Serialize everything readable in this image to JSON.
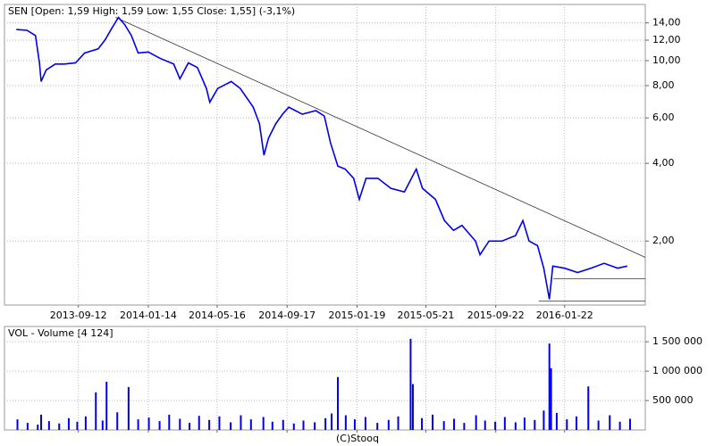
{
  "chart_data": [
    {
      "type": "line",
      "title": "SEN [Open: 1,59  High: 1,59  Low: 1,55  Close: 1,55] (-3,1%)",
      "color": "#0000ee",
      "yscale": "log",
      "grid": true,
      "xlim": [
        "2013-05-04",
        "2016-06-13"
      ],
      "xticks": [
        "2013-09-12",
        "2014-01-14",
        "2014-05-16",
        "2014-09-17",
        "2015-01-19",
        "2015-05-21",
        "2015-09-22",
        "2016-01-22"
      ],
      "ylim": [
        1.13,
        16.5
      ],
      "yticks": [
        {
          "value": 2,
          "label": "2,00"
        },
        {
          "value": 4,
          "label": "4,00"
        },
        {
          "value": 6,
          "label": "6,00"
        },
        {
          "value": 8,
          "label": "8,00"
        },
        {
          "value": 10,
          "label": "10,00"
        },
        {
          "value": 12,
          "label": "12,00"
        },
        {
          "value": 14,
          "label": "14,00"
        }
      ],
      "x": [
        "2013-05-25",
        "2013-06-13",
        "2013-06-28",
        "2013-07-05",
        "2013-07-08",
        "2013-07-17",
        "2013-08-02",
        "2013-08-18",
        "2013-09-07",
        "2013-09-23",
        "2013-10-17",
        "2013-10-29",
        "2013-11-09",
        "2013-11-22",
        "2013-12-03",
        "2013-12-15",
        "2013-12-27",
        "2014-01-14",
        "2014-02-04",
        "2014-02-28",
        "2014-03-11",
        "2014-03-26",
        "2014-04-11",
        "2014-04-27",
        "2014-05-03",
        "2014-05-17",
        "2014-06-10",
        "2014-06-26",
        "2014-07-19",
        "2014-07-30",
        "2014-08-07",
        "2014-08-15",
        "2014-08-28",
        "2014-09-09",
        "2014-09-20",
        "2014-10-14",
        "2014-11-07",
        "2014-11-22",
        "2014-12-03",
        "2014-12-16",
        "2014-12-29",
        "2015-01-13",
        "2015-01-23",
        "2015-02-04",
        "2015-02-25",
        "2015-03-20",
        "2015-04-13",
        "2015-05-04",
        "2015-05-15",
        "2015-06-07",
        "2015-06-23",
        "2015-07-09",
        "2015-07-24",
        "2015-08-17",
        "2015-08-25",
        "2015-09-10",
        "2015-10-03",
        "2015-10-27",
        "2015-11-09",
        "2015-11-20",
        "2015-12-05",
        "2015-12-16",
        "2015-12-26",
        "2016-01-01",
        "2016-01-22",
        "2016-02-14",
        "2016-03-09",
        "2016-04-01",
        "2016-04-25",
        "2016-05-12"
      ],
      "values": [
        13.2,
        13.1,
        12.5,
        9.8,
        8.3,
        9.2,
        9.7,
        9.7,
        9.8,
        10.7,
        11.1,
        12.0,
        13.2,
        14.7,
        13.8,
        12.5,
        10.7,
        10.8,
        10.2,
        9.7,
        8.5,
        9.8,
        9.4,
        7.8,
        6.9,
        7.8,
        8.3,
        7.8,
        6.6,
        5.7,
        4.3,
        5.0,
        5.7,
        6.2,
        6.6,
        6.2,
        6.4,
        6.1,
        4.8,
        3.9,
        3.8,
        3.5,
        2.9,
        3.5,
        3.5,
        3.2,
        3.1,
        3.8,
        3.2,
        2.9,
        2.4,
        2.2,
        2.3,
        2.0,
        1.77,
        2.0,
        2.0,
        2.1,
        2.4,
        2.0,
        1.92,
        1.57,
        1.19,
        1.6,
        1.57,
        1.51,
        1.57,
        1.64,
        1.57,
        1.6
      ],
      "lines": [
        {
          "x": [
            "2013-11-17",
            "2016-06-13"
          ],
          "values": [
            14.7,
            1.73
          ]
        },
        {
          "x": [
            "2016-01-02",
            "2016-06-13"
          ],
          "values": [
            1.43,
            1.43
          ]
        },
        {
          "x": [
            "2015-12-07",
            "2016-06-13"
          ],
          "values": [
            1.17,
            1.17
          ]
        }
      ],
      "footer": "(C)Stooq"
    },
    {
      "type": "bar",
      "title": "VOL - Volume [4 124]",
      "color": "#0000ee",
      "grid": true,
      "ylim": [
        0,
        1760000
      ],
      "yticks": [
        {
          "value": 500000,
          "label": "500 000"
        },
        {
          "value": 1000000,
          "label": "1 000 000"
        },
        {
          "value": 1500000,
          "label": "1 500 000"
        }
      ],
      "x": [
        "2013-05-27",
        "2013-06-14",
        "2013-07-02",
        "2013-07-08",
        "2013-07-22",
        "2013-08-09",
        "2013-08-26",
        "2013-09-10",
        "2013-09-25",
        "2013-10-13",
        "2013-10-25",
        "2013-11-01",
        "2013-11-20",
        "2013-12-10",
        "2013-12-27",
        "2014-01-15",
        "2014-02-03",
        "2014-02-20",
        "2014-03-11",
        "2014-03-28",
        "2014-04-14",
        "2014-05-02",
        "2014-05-20",
        "2014-06-09",
        "2014-06-27",
        "2014-07-15",
        "2014-08-06",
        "2014-08-22",
        "2014-09-10",
        "2014-09-29",
        "2014-10-16",
        "2014-11-05",
        "2014-11-24",
        "2014-12-05",
        "2014-12-16",
        "2014-12-30",
        "2015-01-15",
        "2015-02-03",
        "2015-02-24",
        "2015-03-16",
        "2015-04-02",
        "2015-04-24",
        "2015-04-28",
        "2015-05-14",
        "2015-06-02",
        "2015-06-22",
        "2015-07-10",
        "2015-07-28",
        "2015-08-18",
        "2015-09-03",
        "2015-09-21",
        "2015-10-08",
        "2015-10-27",
        "2015-11-12",
        "2015-11-30",
        "2015-12-16",
        "2015-12-26",
        "2015-12-29",
        "2016-01-08",
        "2016-01-26",
        "2016-02-12",
        "2016-03-04",
        "2016-03-22",
        "2016-04-11",
        "2016-04-29",
        "2016-05-17"
      ],
      "values": [
        180000,
        120000,
        90000,
        260000,
        150000,
        110000,
        200000,
        140000,
        230000,
        640000,
        160000,
        820000,
        300000,
        730000,
        180000,
        210000,
        150000,
        260000,
        190000,
        120000,
        240000,
        170000,
        230000,
        130000,
        250000,
        180000,
        220000,
        140000,
        170000,
        110000,
        160000,
        130000,
        200000,
        280000,
        900000,
        250000,
        180000,
        220000,
        120000,
        170000,
        230000,
        1550000,
        780000,
        200000,
        260000,
        150000,
        190000,
        120000,
        250000,
        160000,
        140000,
        220000,
        130000,
        210000,
        170000,
        330000,
        1470000,
        1050000,
        290000,
        180000,
        230000,
        740000,
        160000,
        250000,
        140000,
        190000
      ]
    }
  ]
}
